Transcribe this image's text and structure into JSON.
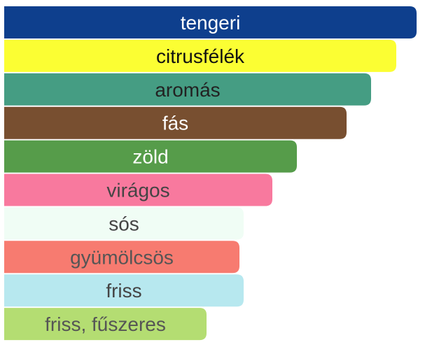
{
  "chart_data": {
    "type": "bar",
    "orientation": "horizontal",
    "categories": [
      "tengeri",
      "citrusfélék",
      "aromás",
      "fás",
      "zöld",
      "virágos",
      "sós",
      "gyümölcsös",
      "friss",
      "friss, fűszeres"
    ],
    "values": [
      100,
      95,
      89,
      83,
      71,
      65,
      58,
      57,
      58,
      49
    ],
    "colors": [
      "#0e3f8d",
      "#fbfe33",
      "#459d83",
      "#784f30",
      "#569c4a",
      "#f8799e",
      "#f0fdf5",
      "#f77b70",
      "#b7e8ef",
      "#b4dd72"
    ],
    "label_colors": [
      "#ffffff",
      "#111111",
      "#222222",
      "#ffffff",
      "#ffffff",
      "#444444",
      "#444444",
      "#555555",
      "#444444",
      "#555555"
    ],
    "xlim": [
      0,
      100
    ],
    "title": "",
    "xlabel": "",
    "ylabel": "",
    "grid": false,
    "legend": "none"
  }
}
